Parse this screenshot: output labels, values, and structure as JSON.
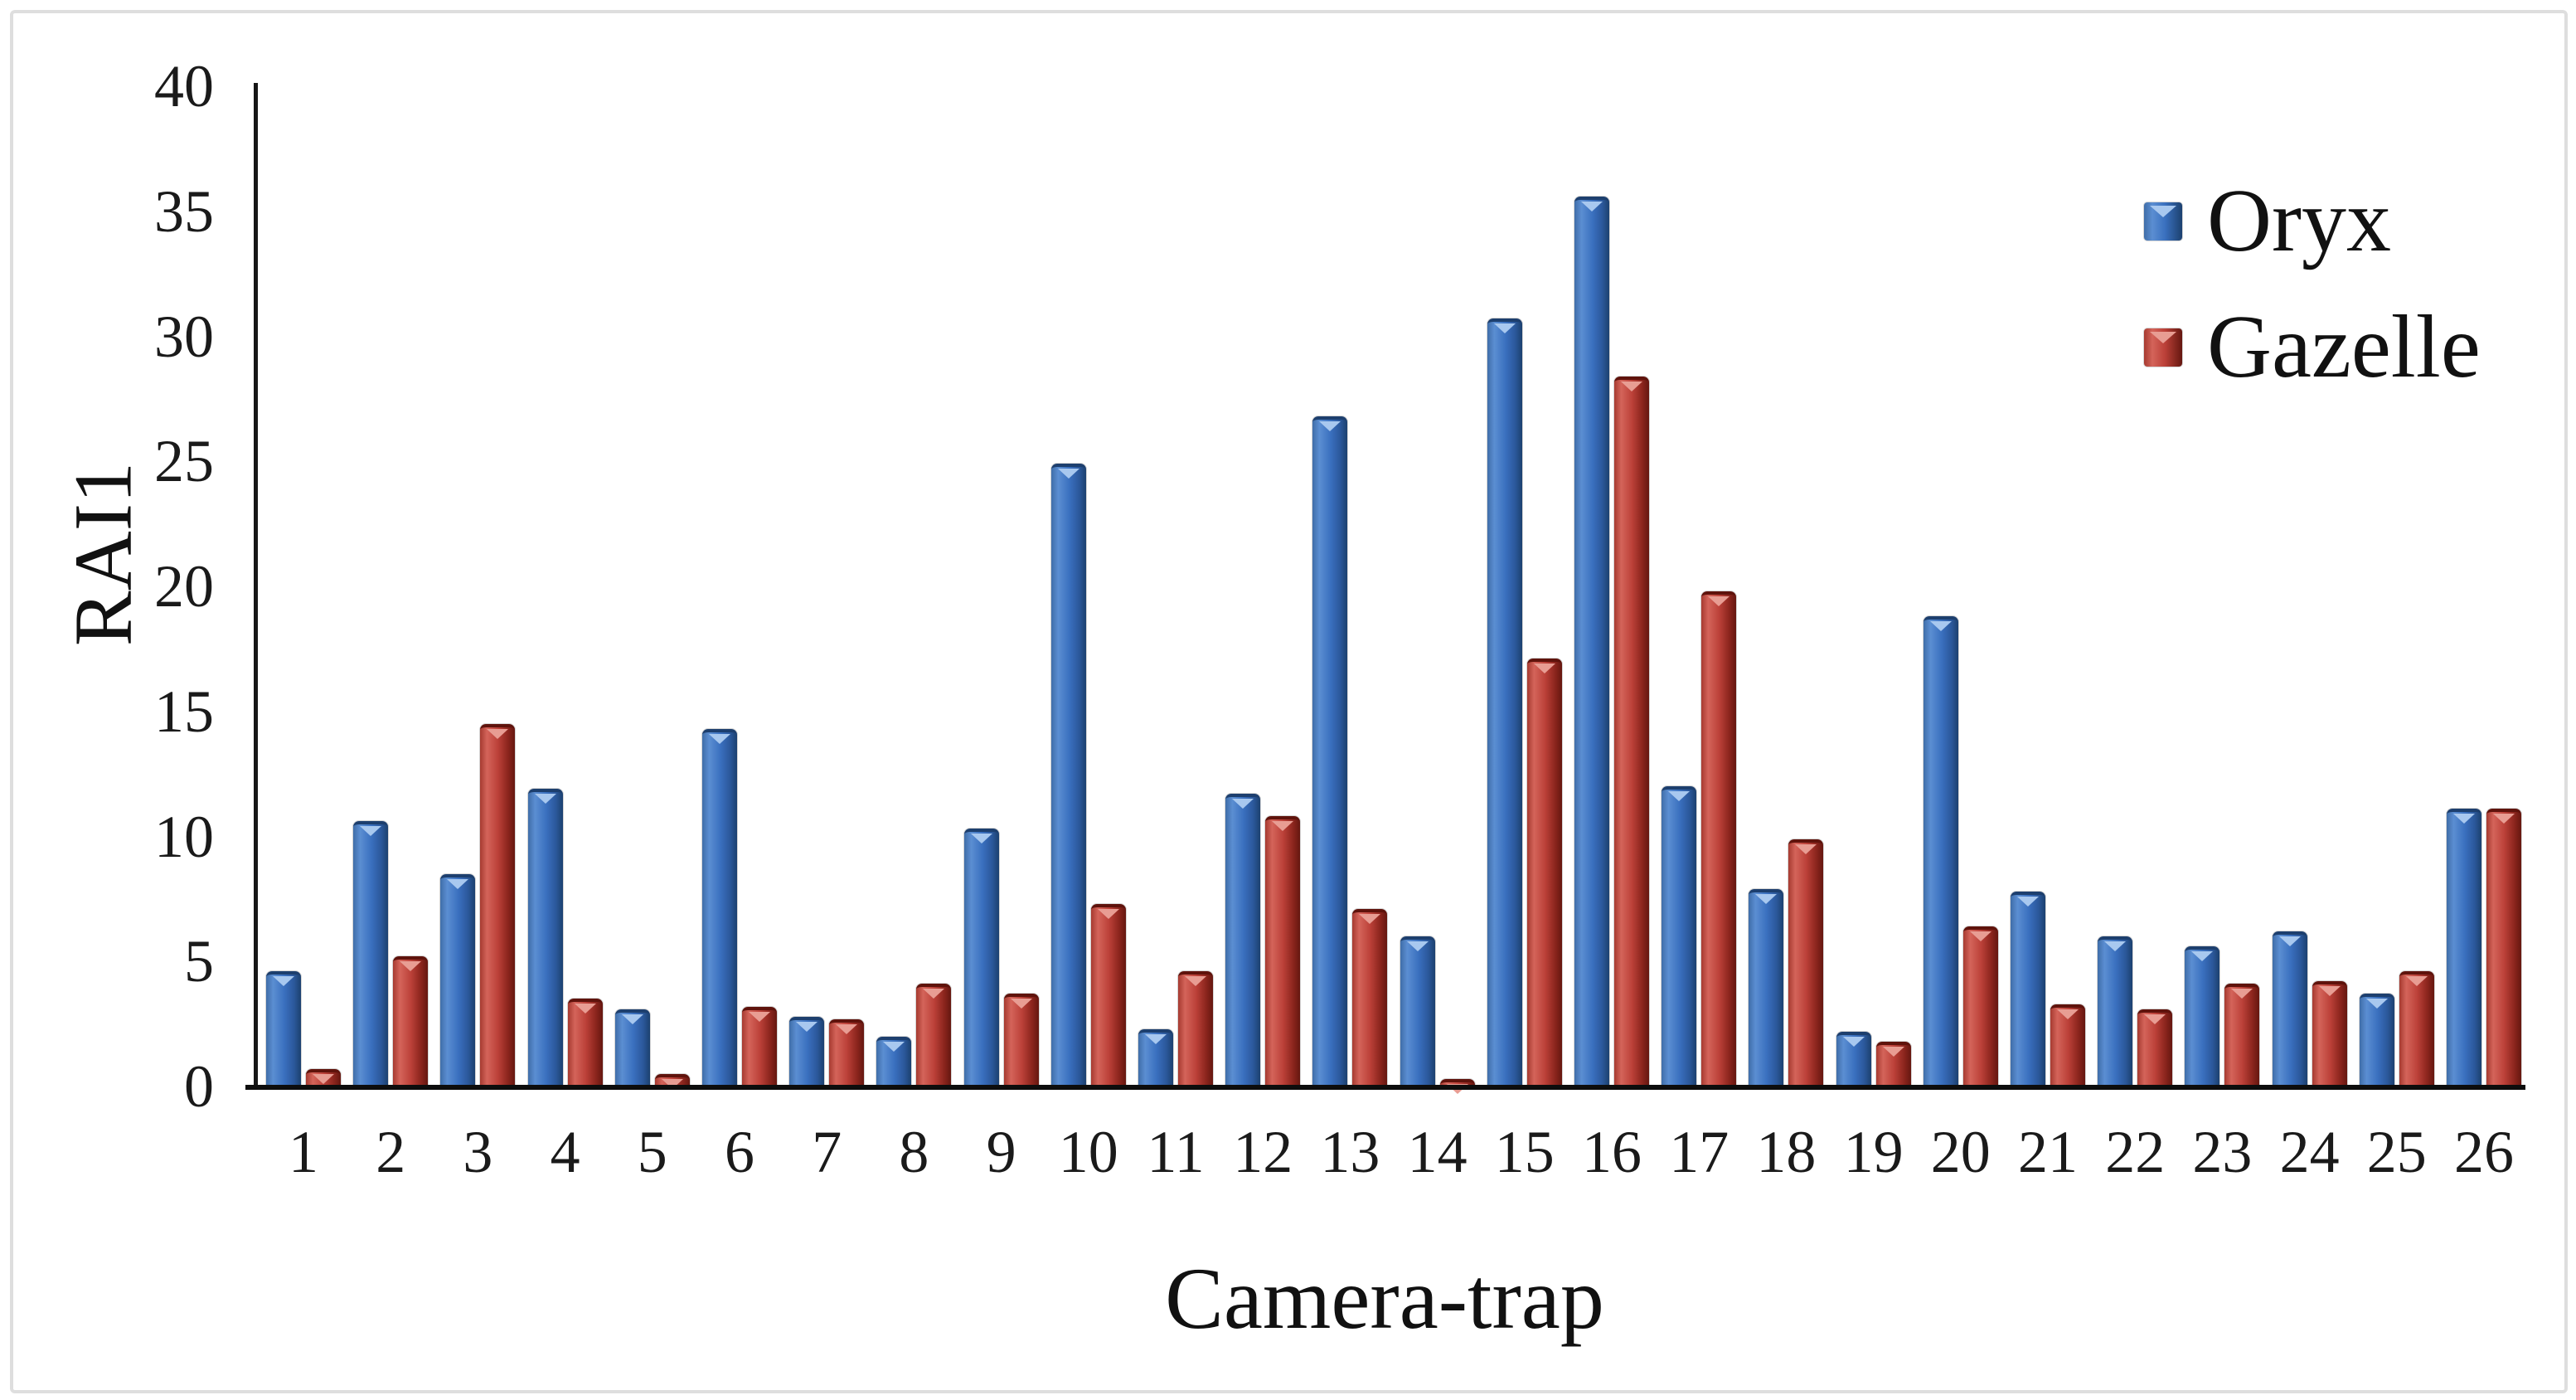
{
  "chart_data": {
    "type": "bar",
    "title": "",
    "xlabel": "Camera-trap",
    "ylabel": "RAI1",
    "categories": [
      "1",
      "2",
      "3",
      "4",
      "5",
      "6",
      "7",
      "8",
      "9",
      "10",
      "11",
      "12",
      "13",
      "14",
      "15",
      "16",
      "17",
      "18",
      "19",
      "20",
      "21",
      "22",
      "23",
      "24",
      "25",
      "26"
    ],
    "series": [
      {
        "name": "Oryx",
        "color": "#3a70bf",
        "values": [
          4.6,
          10.6,
          8.5,
          11.9,
          3.1,
          14.3,
          2.8,
          2.0,
          10.3,
          24.9,
          2.3,
          11.7,
          26.8,
          6.0,
          30.7,
          35.6,
          12.0,
          7.9,
          2.2,
          18.8,
          7.8,
          6.0,
          5.6,
          6.2,
          3.7,
          11.1
        ]
      },
      {
        "name": "Gazelle",
        "color": "#bb4038",
        "values": [
          0.7,
          5.2,
          14.5,
          3.5,
          0.5,
          3.2,
          2.7,
          4.1,
          3.7,
          7.3,
          4.6,
          10.8,
          7.1,
          0.3,
          17.1,
          28.4,
          19.8,
          9.9,
          1.8,
          6.4,
          3.3,
          3.1,
          4.1,
          4.2,
          4.6,
          11.1
        ]
      }
    ],
    "ylim": [
      0,
      40
    ],
    "yticks": [
      0,
      5,
      10,
      15,
      20,
      25,
      30,
      35,
      40
    ],
    "grid": false,
    "legend_position": "top-right"
  }
}
